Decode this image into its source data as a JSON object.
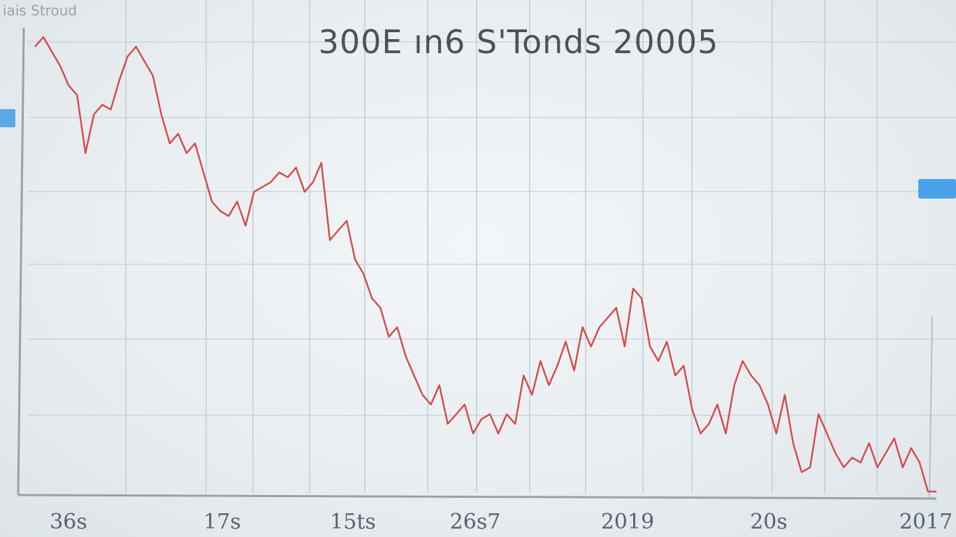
{
  "chart_data": {
    "type": "line",
    "title": "300E ın6 S'Tonds 20005",
    "x_tick_labels": [
      "36s",
      "17s",
      "15ts",
      "26s7",
      "2019",
      "20s",
      "2017"
    ],
    "grid": true,
    "line_color": "#d44a4a",
    "series": [
      {
        "values": [
          92,
          94,
          91,
          88,
          84,
          82,
          70,
          78,
          80,
          79,
          85,
          90,
          92,
          89,
          86,
          78,
          72,
          74,
          70,
          72,
          66,
          60,
          58,
          57,
          60,
          55,
          62,
          63,
          64,
          66,
          65,
          67,
          62,
          64,
          68,
          52,
          54,
          56,
          48,
          45,
          40,
          38,
          32,
          34,
          28,
          24,
          20,
          18,
          22,
          14,
          16,
          18,
          12,
          15,
          16,
          12,
          16,
          14,
          24,
          20,
          27,
          22,
          26,
          31,
          25,
          34,
          30,
          34,
          36,
          38,
          30,
          42,
          40,
          30,
          27,
          31,
          24,
          26,
          17,
          12,
          14,
          18,
          12,
          22,
          27,
          24,
          22,
          18,
          12,
          20,
          10,
          4,
          5,
          16,
          12,
          8,
          5,
          7,
          6,
          10,
          5,
          8,
          11,
          5,
          9,
          6,
          0,
          0
        ]
      }
    ]
  },
  "colors": {
    "gridline": "#c9d6df",
    "axis": "#98a2aa",
    "background": "#eef2f5"
  },
  "corner_label": "iais Stroud"
}
